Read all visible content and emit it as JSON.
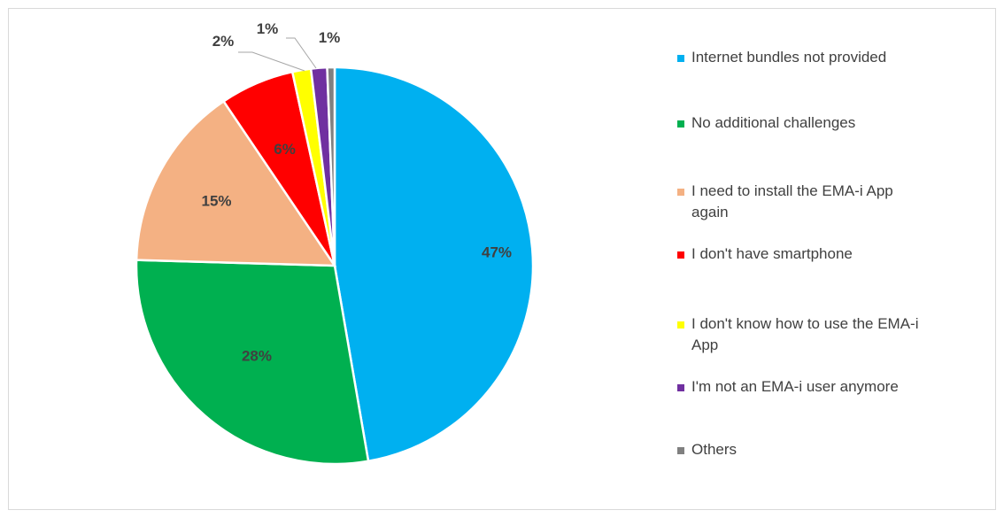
{
  "chart_data": {
    "type": "pie",
    "title": "",
    "slices": [
      {
        "label": "Internet bundles not provided",
        "value": 47,
        "display": "47%",
        "color": "#00B0F0"
      },
      {
        "label": "No additional challenges",
        "value": 28,
        "display": "28%",
        "color": "#00B050"
      },
      {
        "label": "I need to install the EMA-i App again",
        "value": 15,
        "display": "15%",
        "color": "#F4B183"
      },
      {
        "label": "I don't have smartphone",
        "value": 6,
        "display": "6%",
        "color": "#FF0000"
      },
      {
        "label": "I don't know how to use the EMA-i App",
        "value": 1.5,
        "display": "2%",
        "color": "#FFFF00"
      },
      {
        "label": "I'm not an EMA-i user anymore",
        "value": 1.3,
        "display": "1%",
        "color": "#7030A0"
      },
      {
        "label": "Others",
        "value": 0.6,
        "display": "1%",
        "color": "#808080"
      }
    ],
    "legend_position": "right",
    "data_labels": true
  }
}
